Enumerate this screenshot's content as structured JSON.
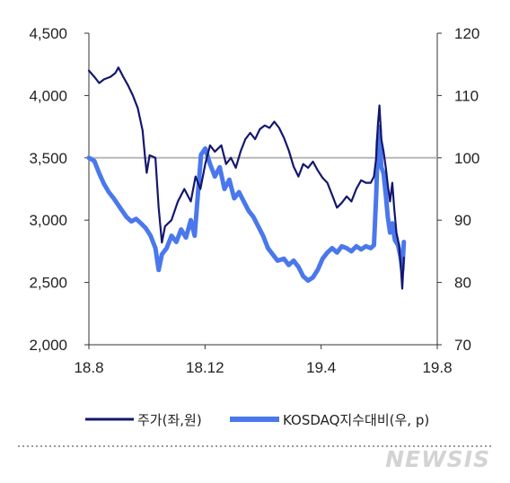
{
  "chart_data": {
    "type": "line",
    "title": "",
    "xlabel": "",
    "ylabel": "",
    "x_ticks": [
      "18.8",
      "18.12",
      "19.4",
      "19.8"
    ],
    "x_range": [
      2018.583,
      2019.667
    ],
    "y_left": {
      "ticks": [
        "2,000",
        "2,500",
        "3,000",
        "3,500",
        "4,000",
        "4,500"
      ],
      "ylim": [
        2000,
        4500
      ]
    },
    "y_right": {
      "ticks": [
        "70",
        "80",
        "90",
        "100",
        "110",
        "120"
      ],
      "ylim": [
        70,
        120
      ]
    },
    "reference_line": {
      "axis": "right",
      "value": 100,
      "color": "#b8b8b8"
    },
    "grid": false,
    "legend_position": "bottom",
    "series": [
      {
        "name": "주가(좌,원)",
        "axis": "left",
        "color": "#14176e",
        "points": [
          [
            2018.583,
            4200
          ],
          [
            2018.6,
            4150
          ],
          [
            2018.615,
            4100
          ],
          [
            2018.63,
            4130
          ],
          [
            2018.65,
            4150
          ],
          [
            2018.665,
            4180
          ],
          [
            2018.675,
            4225
          ],
          [
            2018.69,
            4150
          ],
          [
            2018.705,
            4080
          ],
          [
            2018.72,
            4000
          ],
          [
            2018.735,
            3900
          ],
          [
            2018.75,
            3720
          ],
          [
            2018.758,
            3500
          ],
          [
            2018.763,
            3380
          ],
          [
            2018.772,
            3520
          ],
          [
            2018.79,
            3500
          ],
          [
            2018.8,
            3100
          ],
          [
            2018.81,
            2820
          ],
          [
            2018.82,
            2950
          ],
          [
            2018.84,
            3000
          ],
          [
            2018.86,
            3150
          ],
          [
            2018.88,
            3250
          ],
          [
            2018.9,
            3150
          ],
          [
            2018.915,
            3350
          ],
          [
            2018.93,
            3250
          ],
          [
            2018.945,
            3450
          ],
          [
            2018.96,
            3600
          ],
          [
            2018.975,
            3550
          ],
          [
            2018.995,
            3600
          ],
          [
            2019.01,
            3450
          ],
          [
            2019.025,
            3500
          ],
          [
            2019.04,
            3420
          ],
          [
            2019.055,
            3550
          ],
          [
            2019.07,
            3650
          ],
          [
            2019.085,
            3700
          ],
          [
            2019.1,
            3650
          ],
          [
            2019.115,
            3730
          ],
          [
            2019.13,
            3760
          ],
          [
            2019.145,
            3740
          ],
          [
            2019.16,
            3790
          ],
          [
            2019.175,
            3740
          ],
          [
            2019.19,
            3660
          ],
          [
            2019.205,
            3560
          ],
          [
            2019.22,
            3430
          ],
          [
            2019.235,
            3350
          ],
          [
            2019.25,
            3450
          ],
          [
            2019.265,
            3420
          ],
          [
            2019.28,
            3470
          ],
          [
            2019.295,
            3400
          ],
          [
            2019.31,
            3340
          ],
          [
            2019.325,
            3300
          ],
          [
            2019.34,
            3200
          ],
          [
            2019.355,
            3100
          ],
          [
            2019.37,
            3140
          ],
          [
            2019.385,
            3190
          ],
          [
            2019.4,
            3150
          ],
          [
            2019.415,
            3250
          ],
          [
            2019.43,
            3320
          ],
          [
            2019.445,
            3300
          ],
          [
            2019.46,
            3300
          ],
          [
            2019.47,
            3350
          ],
          [
            2019.477,
            3500
          ],
          [
            2019.482,
            3760
          ],
          [
            2019.487,
            3920
          ],
          [
            2019.493,
            3650
          ],
          [
            2019.5,
            3550
          ],
          [
            2019.507,
            3420
          ],
          [
            2019.513,
            3280
          ],
          [
            2019.52,
            3150
          ],
          [
            2019.527,
            3300
          ],
          [
            2019.533,
            3100
          ],
          [
            2019.54,
            2900
          ],
          [
            2019.548,
            2800
          ],
          [
            2019.553,
            2650
          ],
          [
            2019.558,
            2450
          ],
          [
            2019.563,
            2700
          ]
        ]
      },
      {
        "name": "KOSDAQ지수대비(우, p)",
        "axis": "right",
        "color": "#4a78ec",
        "points": [
          [
            2018.583,
            100.0
          ],
          [
            2018.6,
            99.5
          ],
          [
            2018.615,
            97.5
          ],
          [
            2018.63,
            95.8
          ],
          [
            2018.645,
            94.5
          ],
          [
            2018.66,
            93.5
          ],
          [
            2018.68,
            92.0
          ],
          [
            2018.7,
            90.5
          ],
          [
            2018.715,
            89.8
          ],
          [
            2018.73,
            90.2
          ],
          [
            2018.745,
            89.5
          ],
          [
            2018.76,
            88.7
          ],
          [
            2018.775,
            87.5
          ],
          [
            2018.79,
            85.5
          ],
          [
            2018.8,
            82.0
          ],
          [
            2018.81,
            84.5
          ],
          [
            2018.825,
            85.5
          ],
          [
            2018.84,
            87.5
          ],
          [
            2018.855,
            86.5
          ],
          [
            2018.87,
            88.5
          ],
          [
            2018.885,
            87.2
          ],
          [
            2018.9,
            90.0
          ],
          [
            2018.912,
            87.5
          ],
          [
            2018.922,
            94.0
          ],
          [
            2018.932,
            100.5
          ],
          [
            2018.945,
            101.5
          ],
          [
            2018.96,
            99.0
          ],
          [
            2018.975,
            97.0
          ],
          [
            2018.99,
            98.5
          ],
          [
            2019.005,
            95.0
          ],
          [
            2019.02,
            96.5
          ],
          [
            2019.035,
            93.5
          ],
          [
            2019.05,
            94.5
          ],
          [
            2019.065,
            93.0
          ],
          [
            2019.08,
            91.5
          ],
          [
            2019.095,
            90.5
          ],
          [
            2019.11,
            89.0
          ],
          [
            2019.125,
            87.5
          ],
          [
            2019.14,
            85.5
          ],
          [
            2019.155,
            84.5
          ],
          [
            2019.17,
            83.5
          ],
          [
            2019.19,
            83.8
          ],
          [
            2019.205,
            82.8
          ],
          [
            2019.22,
            83.5
          ],
          [
            2019.235,
            82.5
          ],
          [
            2019.25,
            81.0
          ],
          [
            2019.265,
            80.3
          ],
          [
            2019.28,
            80.8
          ],
          [
            2019.295,
            82.0
          ],
          [
            2019.31,
            83.8
          ],
          [
            2019.325,
            84.8
          ],
          [
            2019.34,
            85.5
          ],
          [
            2019.355,
            84.8
          ],
          [
            2019.37,
            85.8
          ],
          [
            2019.385,
            85.5
          ],
          [
            2019.4,
            85.0
          ],
          [
            2019.415,
            85.8
          ],
          [
            2019.43,
            85.3
          ],
          [
            2019.445,
            85.8
          ],
          [
            2019.46,
            85.5
          ],
          [
            2019.47,
            86.0
          ],
          [
            2019.477,
            94.0
          ],
          [
            2019.482,
            102.5
          ],
          [
            2019.487,
            105.0
          ],
          [
            2019.493,
            98.5
          ],
          [
            2019.5,
            97.5
          ],
          [
            2019.507,
            94.0
          ],
          [
            2019.513,
            90.5
          ],
          [
            2019.52,
            88.0
          ],
          [
            2019.527,
            89.5
          ],
          [
            2019.535,
            86.8
          ],
          [
            2019.545,
            86.0
          ],
          [
            2019.553,
            84.0
          ],
          [
            2019.558,
            82.0
          ],
          [
            2019.563,
            86.5
          ]
        ]
      }
    ]
  },
  "legend": {
    "items": [
      {
        "label": "주가(좌,원)",
        "color": "#14176e"
      },
      {
        "label": "KOSDAQ지수대비(우, p)",
        "color": "#4a78ec"
      }
    ]
  },
  "watermark": {
    "text": "NEWSIS"
  }
}
